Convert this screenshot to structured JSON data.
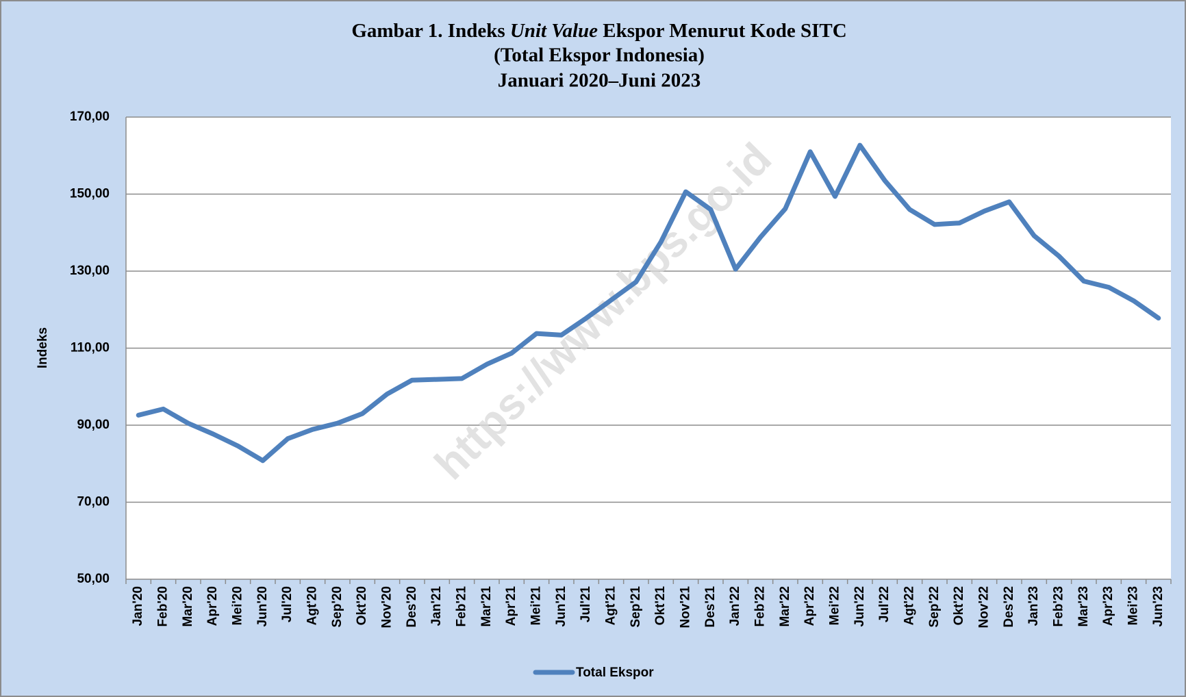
{
  "chart_data": {
    "type": "line",
    "title": [
      [
        "Gambar 1. Indeks ",
        "Unit Value",
        " Ekspor Menurut Kode SITC"
      ],
      [
        "(Total Ekspor Indonesia)"
      ],
      [
        "Januari 2020–Juni 2023"
      ]
    ],
    "y_label": "Indeks",
    "watermark": "https://www.bps.go.id",
    "categories": [
      "Jan'20",
      "Feb'20",
      "Mar'20",
      "Apr'20",
      "Mei'20",
      "Jun'20",
      "Jul'20",
      "Agt'20",
      "Sep'20",
      "Okt'20",
      "Nov'20",
      "Des'20",
      "Jan'21",
      "Feb'21",
      "Mar'21",
      "Apr'21",
      "Mei'21",
      "Jun'21",
      "Jul'21",
      "Agt'21",
      "Sep'21",
      "Okt'21",
      "Nov'21",
      "Des'21",
      "Jan'22",
      "Feb'22",
      "Mar'22",
      "Apr'22",
      "Mei'22",
      "Jun'22",
      "Jul'22",
      "Agt'22",
      "Sep'22",
      "Okt'22",
      "Nov'22",
      "Des'22",
      "Jan'23",
      "Feb'23",
      "Mar'23",
      "Apr'23",
      "Mei'23",
      "Jun'23"
    ],
    "series": [
      {
        "name": "Total Ekspor",
        "color": "#4f81bd",
        "values": [
          92.6,
          94.2,
          90.5,
          87.7,
          84.6,
          80.8,
          86.5,
          88.9,
          90.5,
          93.0,
          98.1,
          101.7,
          101.9,
          102.1,
          105.8,
          108.7,
          113.8,
          113.4,
          117.8,
          122.5,
          127.2,
          137.6,
          150.6,
          146.0,
          130.5,
          138.8,
          146.2,
          161.0,
          149.4,
          162.7,
          153.5,
          146.0,
          142.1,
          142.5,
          145.6,
          148.0,
          139.2,
          133.9,
          127.4,
          125.8,
          122.3,
          117.8
        ]
      }
    ],
    "ylim": [
      50,
      170
    ],
    "yticks": [
      {
        "value": 50,
        "label": "50,00"
      },
      {
        "value": 70,
        "label": "70,00"
      },
      {
        "value": 90,
        "label": "90,00"
      },
      {
        "value": 110,
        "label": "110,00"
      },
      {
        "value": 130,
        "label": "130,00"
      },
      {
        "value": 150,
        "label": "150,00"
      },
      {
        "value": 170,
        "label": "170,00"
      }
    ],
    "grid": true,
    "legend": "bottom"
  }
}
